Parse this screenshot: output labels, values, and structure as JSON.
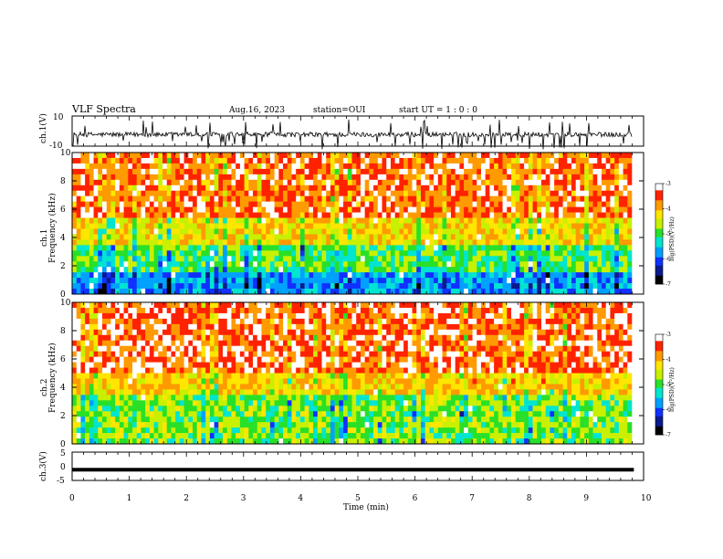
{
  "header": {
    "title": "VLF Spectra",
    "date": "Aug.16, 2023",
    "station": "station=OUI",
    "start": "start  UT =   1 : 0  : 0"
  },
  "colors": {
    "ink": "#000000",
    "colormap": [
      "#000000",
      "#0b1a8c",
      "#1030ff",
      "#00a0ff",
      "#00e5d0",
      "#28e028",
      "#c8f000",
      "#ffe600",
      "#ff9a00",
      "#ff2200",
      "#ffffff"
    ]
  },
  "chart_data": [
    {
      "id": "ch1-waveform",
      "type": "line",
      "ylabel": "ch.1(V)",
      "ylim": [
        -10,
        10
      ],
      "yticks": [
        "10",
        "-10"
      ],
      "xlim": [
        0,
        10
      ],
      "note": "noisy waveform centred near -2.5 V with spikes"
    },
    {
      "id": "ch1-spectrogram",
      "type": "heatmap",
      "ylabel": "Frequency (kHz)",
      "channel_label": "ch.1",
      "ylim": [
        0,
        10
      ],
      "yticks": [
        "0",
        "2",
        "4",
        "6",
        "8",
        "10"
      ],
      "xlim": [
        0,
        10
      ],
      "colorbar": {
        "label": "log(PSD)(V²/Hz)",
        "range": [
          -7,
          -3
        ],
        "ticks": [
          "-3",
          "-4",
          "-5",
          "-6",
          "-7"
        ]
      }
    },
    {
      "id": "ch2-spectrogram",
      "type": "heatmap",
      "ylabel": "Frequency (kHz)",
      "channel_label": "ch.2",
      "ylim": [
        0,
        10
      ],
      "yticks": [
        "0",
        "2",
        "4",
        "6",
        "8",
        "10"
      ],
      "xlim": [
        0,
        10
      ],
      "colorbar": {
        "label": "log(PSD)(V²/Hz)",
        "range": [
          -7,
          -3
        ],
        "ticks": [
          "-3",
          "-4",
          "-5",
          "-6",
          "-7"
        ]
      }
    },
    {
      "id": "ch3-signal",
      "type": "line",
      "ylabel": "ch.3(V)",
      "ylim": [
        -5,
        5
      ],
      "yticks": [
        "5",
        "0",
        "-5"
      ],
      "x": [
        0,
        9.83
      ],
      "y": [
        -1.2,
        -1.2
      ],
      "xlim": [
        0,
        10
      ],
      "xlabel": "Time (min)",
      "xticks": [
        "0",
        "1",
        "2",
        "3",
        "4",
        "5",
        "6",
        "7",
        "8",
        "9",
        "10"
      ]
    }
  ]
}
